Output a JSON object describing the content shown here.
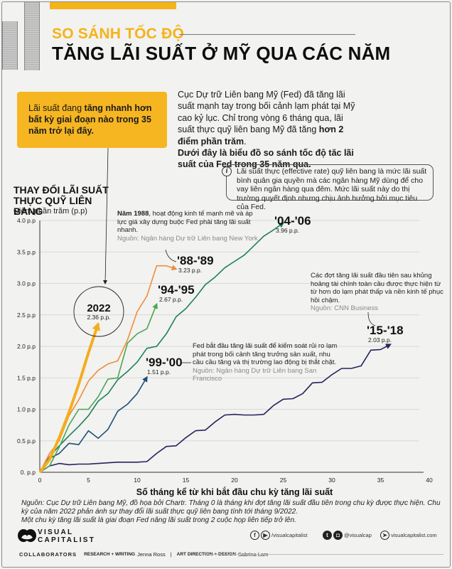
{
  "header": {
    "supertitle": "SO SÁNH TỐC ĐỘ",
    "title": "TĂNG LÃI SUẤT Ở MỸ QUA CÁC NĂM"
  },
  "callout": {
    "text_before": "Lãi suất đang ",
    "text_bold": "tăng nhanh hơn bất kỳ giai đoạn nào trong 35 năm trở lại đây."
  },
  "intro": {
    "p1_a": "Cục Dự trữ Liên bang Mỹ (Fed) đã tăng lãi suất mạnh tay trong bối cảnh lạm phát tại Mỹ cao kỷ lục. Chỉ trong vòng 6 tháng qua, lãi suất thực quỹ liên bang Mỹ đã tăng ",
    "p1_bold": "hơn 2 điểm phần trăm",
    "p1_end": ".",
    "p2_bold": "Dưới đây là biểu đồ so sánh tốc độ tăc lãi suất của Fed trong 35 năm qua."
  },
  "info_box": {
    "icon": "info-icon",
    "text": "Lãi suất thực (effective rate) quỹ liên bang là mức lãi suất bình quân gia quyền mà các ngân hàng Mỹ dùng để cho vay liên ngân hàng qua đêm. Mức lãi suất này do thị trường quyết định nhưng chịu ảnh hưởng bởi mục tiêu của Fed."
  },
  "annotations": {
    "a1988": {
      "bold": "Năm 1988",
      "text": ", hoạt động kinh tế mạnh mẽ và áp lực giá xây dựng buộc Fed phải tăng lãi suất nhanh.",
      "source": "Nguồn: Ngân hàng Dự trữ Liên bang New York"
    },
    "a1999": {
      "text": "Fed bắt đầu tăng lãi suất để kiểm soát rủi ro lạm phát trong bối cảnh tăng trưởng sản xuất, nhu cầu cầu tăng và thị trường lao động bị thắt chặt.",
      "source": "Nguồn: Ngân hàng Dự trữ Liên bang San Francisco"
    },
    "a2015": {
      "text": "Các đợt tăng lãi suất đầu tiên sau khủng hoảng tài chính toàn cầu được thực hiện từ từ hơn do lạm phát thấp và nền kinh tế phục hồi chậm.",
      "source": "Nguồn: CNN Business"
    }
  },
  "chart_data": {
    "type": "line",
    "title": "THAY ĐỔI LÃI SUẤT THỰC QUỸ LIÊN BANG",
    "subtitle": "Điểm phần trăm (p.p)",
    "xlabel": "Số tháng kể từ khi bắt đầu chu kỳ tăng lãi suất",
    "ylabel": "Điểm phần trăm (p.p)",
    "xlim": [
      0,
      40
    ],
    "ylim": [
      0,
      4.0
    ],
    "x_ticks": [
      0,
      5,
      10,
      15,
      20,
      25,
      30,
      35,
      40
    ],
    "y_ticks": [
      {
        "value": 0,
        "label": "0. p.p"
      },
      {
        "value": 0.5,
        "label": "0.5 p.p"
      },
      {
        "value": 1.0,
        "label": "1.0 p.p"
      },
      {
        "value": 1.5,
        "label": "1.5 p.p"
      },
      {
        "value": 2.0,
        "label": "2.0 p.p"
      },
      {
        "value": 2.5,
        "label": "2.5 p.p"
      },
      {
        "value": 3.0,
        "label": "3.0 p.p"
      },
      {
        "value": 3.5,
        "label": "3.5 p.p"
      },
      {
        "value": 4.0,
        "label": "4.0 p.p"
      }
    ],
    "grid": true,
    "series": [
      {
        "name": "'15-'18",
        "total_label": "2.03 p.p.",
        "color": "#24245e",
        "values": [
          0,
          0.1,
          0.14,
          0.12,
          0.13,
          0.13,
          0.14,
          0.15,
          0.16,
          0.16,
          0.16,
          0.17,
          0.3,
          0.41,
          0.42,
          0.55,
          0.66,
          0.67,
          0.8,
          0.91,
          0.92,
          0.91,
          0.91,
          0.92,
          1.06,
          1.16,
          1.17,
          1.25,
          1.42,
          1.43,
          1.55,
          1.65,
          1.65,
          1.69,
          1.94,
          1.95,
          2.03
        ]
      },
      {
        "name": "'99-'00",
        "total_label": "1.51 p.p.",
        "color": "#1d4e78",
        "values": [
          0,
          0.22,
          0.3,
          0.46,
          0.44,
          0.66,
          0.54,
          0.68,
          0.97,
          1.08,
          1.25,
          1.51
        ]
      },
      {
        "name": "'04-'06",
        "total_label": "3.96 p.p.",
        "color": "#1e7f5e",
        "values": [
          0,
          0.25,
          0.42,
          0.58,
          0.73,
          0.9,
          1.13,
          1.25,
          1.47,
          1.6,
          1.75,
          1.97,
          2.0,
          2.2,
          2.47,
          2.6,
          2.78,
          2.98,
          3.1,
          3.25,
          3.35,
          3.45,
          3.6,
          3.75,
          3.85,
          3.96
        ]
      },
      {
        "name": "'94-'95",
        "total_label": "2.67 p.p.",
        "color": "#4aa653",
        "values": [
          0,
          0.1,
          0.4,
          0.75,
          1.0,
          1.0,
          1.2,
          1.48,
          1.5,
          2.05,
          2.2,
          2.28,
          2.67
        ]
      },
      {
        "name": "'88-'89",
        "total_label": "3.23 p.p.",
        "color": "#ee8e3a",
        "values": [
          0,
          0.3,
          0.5,
          0.9,
          1.15,
          1.45,
          1.62,
          1.72,
          1.77,
          2.1,
          2.55,
          2.8,
          3.28,
          3.28,
          3.23
        ]
      },
      {
        "name": "2022",
        "total_label": "2.36 p.p.",
        "color": "#f5ad1f",
        "values": [
          0,
          0.2,
          0.55,
          0.95,
          1.4,
          1.9,
          2.36
        ]
      }
    ]
  },
  "footer": {
    "sources_text": "Nguồn: Cục Dự trữ Liên bang Mỹ, đồ họa bởi Chartr. Tháng 0 là tháng khi đợt tăng lãi suất đầu tiên trong chu kỳ được thực hiện. Chu kỳ của năm 2022 phản ánh sự thay đổi lãi suất thực quỹ liên bang tính tới tháng 9/2022.",
    "sources_text2": "Một chu kỳ tăng lãi suất là giai đoạn Fed nâng lãi suất trong 2 cuộc họp liên tiếp trở lên.",
    "logo_line1": "VISUAL",
    "logo_line2": "CAPITALIST",
    "social": {
      "handle_fb_yt": "/visualcapitalist",
      "handle_tw_ig": "@visualcap",
      "website": "visualcapitalist.com"
    },
    "collaborators_label": "COLLABORATORS",
    "research_role": "RESEARCH + WRITING",
    "research_name": "Jenna Ross",
    "separator": "|",
    "design_role": "ART DIRECTION + DESIGN",
    "design_name": "Sabrina Lam"
  }
}
